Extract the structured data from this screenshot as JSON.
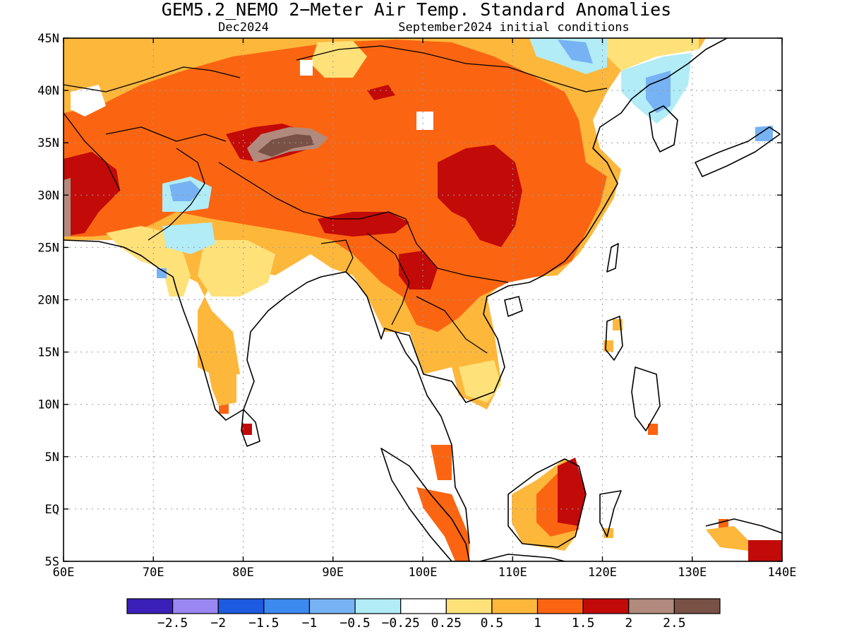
{
  "title": "GEM5.2_NEMO 2−Meter Air Temp. Standard Anomalies",
  "subtitle_left": "Dec2024",
  "subtitle_right": "September2024 initial conditions",
  "lon_labels": [
    "60E",
    "70E",
    "80E",
    "90E",
    "100E",
    "110E",
    "120E",
    "130E",
    "140E"
  ],
  "lat_labels": [
    "45N",
    "40N",
    "35N",
    "30N",
    "25N",
    "20N",
    "15N",
    "10N",
    "5N",
    "EQ",
    "5S"
  ],
  "lon_range": [
    60,
    140
  ],
  "lat_range": [
    -5,
    45
  ],
  "colorbar": {
    "colors": [
      "#3a1fb8",
      "#9b87f2",
      "#1d5be0",
      "#3c8af0",
      "#77b2f4",
      "#b1ecf7",
      "#ffffff",
      "#ffe17a",
      "#fdb73b",
      "#fb6511",
      "#c20a08",
      "#b18a7d",
      "#7a5145"
    ],
    "labels": [
      "−2.5",
      "−2",
      "−1.5",
      "−1",
      "−0.5",
      "−0.25",
      "0.25",
      "0.5",
      "1",
      "1.5",
      "2",
      "2.5"
    ]
  }
}
